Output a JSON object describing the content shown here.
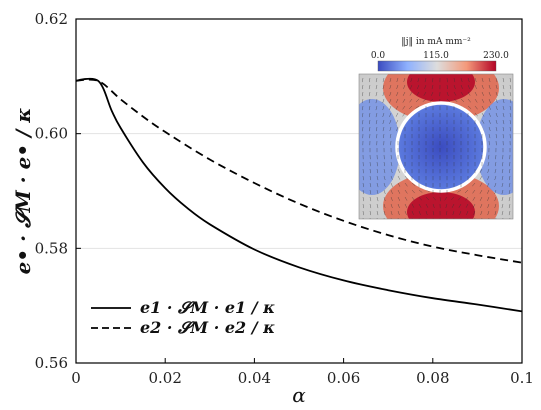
{
  "chart_data": {
    "type": "line",
    "xlabel": "α",
    "ylabel": "e• · 𝓢M · e• / κ",
    "xlim": [
      0,
      0.1
    ],
    "ylim": [
      0.56,
      0.62
    ],
    "x_ticks": [
      "0",
      "0.02",
      "0.04",
      "0.06",
      "0.08",
      "0.1"
    ],
    "y_ticks": [
      "0.56",
      "0.58",
      "0.60",
      "0.62"
    ],
    "grid": "horizontal",
    "legend_position": "bottom-left",
    "series": [
      {
        "name": "e1 · 𝓢M · e1 / κ",
        "style": "solid",
        "x": [
          0,
          0.005,
          0.008,
          0.01,
          0.015,
          0.02,
          0.025,
          0.03,
          0.04,
          0.05,
          0.06,
          0.07,
          0.08,
          0.09,
          0.1
        ],
        "y": [
          0.6092,
          0.6092,
          0.604,
          0.601,
          0.595,
          0.5905,
          0.587,
          0.5842,
          0.5798,
          0.5767,
          0.5744,
          0.5727,
          0.5713,
          0.5702,
          0.569
        ]
      },
      {
        "name": "e2 · 𝓢M · e2 / κ",
        "style": "dashed",
        "x": [
          0,
          0.005,
          0.01,
          0.015,
          0.02,
          0.03,
          0.04,
          0.05,
          0.06,
          0.07,
          0.08,
          0.09,
          0.1
        ],
        "y": [
          0.6092,
          0.6092,
          0.606,
          0.603,
          0.6003,
          0.5955,
          0.5914,
          0.5878,
          0.5848,
          0.5823,
          0.5803,
          0.5788,
          0.5775
        ]
      }
    ]
  },
  "inset": {
    "colorbar_title": "‖j‖ in mA mm⁻²",
    "colorbar_ticks": [
      "0.0",
      "115.0",
      "230.0"
    ],
    "colormap": [
      "#3b4cc0",
      "#8fb1fe",
      "#dddddd",
      "#f49a7b",
      "#b40426"
    ]
  }
}
